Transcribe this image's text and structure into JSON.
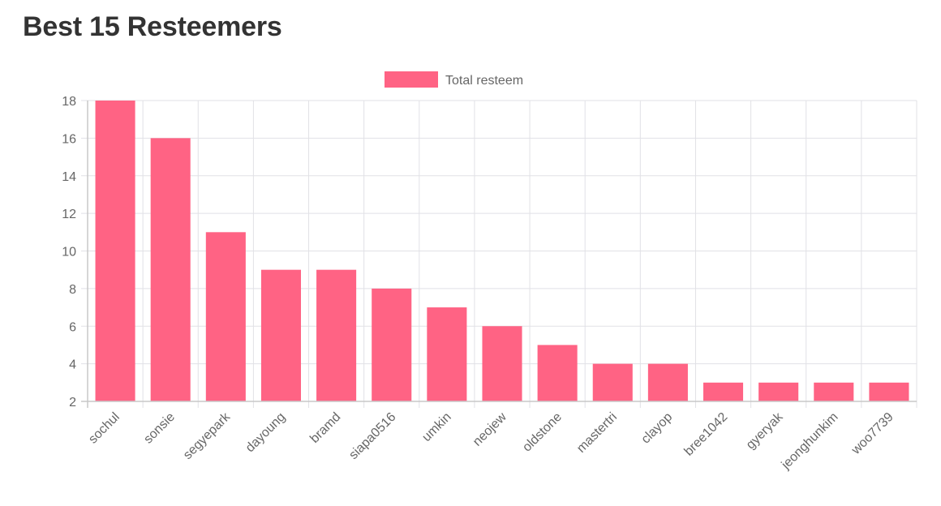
{
  "page": {
    "title": "Best 15 Resteemers"
  },
  "colors": {
    "bar_fill": "#ff6384",
    "grid": "#e1e1e6",
    "axis": "#c8c8c8",
    "text": "#666666",
    "title": "#333333"
  },
  "chart_data": {
    "type": "bar",
    "title": "",
    "xlabel": "",
    "ylabel": "",
    "categories": [
      "sochul",
      "sonsie",
      "segyepark",
      "dayoung",
      "bramd",
      "siapa0516",
      "umkin",
      "neojew",
      "oldstone",
      "mastertri",
      "clayop",
      "bree1042",
      "gyeryak",
      "jeonghunkim",
      "woo7739"
    ],
    "series": [
      {
        "name": "Total resteem",
        "values": [
          18,
          16,
          11,
          9,
          9,
          8,
          7,
          6,
          5,
          4,
          4,
          3,
          3,
          3,
          3
        ]
      }
    ],
    "ylim": [
      2,
      18
    ],
    "yticks": [
      2,
      4,
      6,
      8,
      10,
      12,
      14,
      16,
      18
    ],
    "grid": true,
    "legend_position": "top-center"
  }
}
